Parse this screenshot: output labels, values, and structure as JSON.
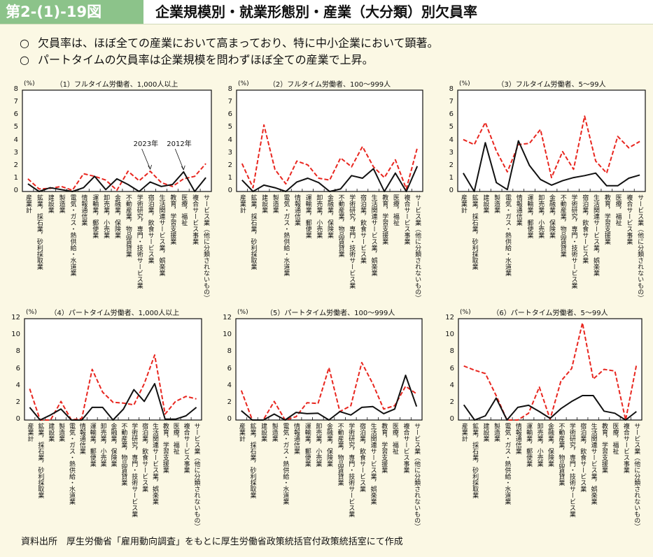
{
  "header": {
    "figure_number": "第2-(1)-19図",
    "title": "企業規模別・就業形態別・産業（大分類）別欠員率"
  },
  "points": [
    {
      "marker": "○",
      "text": "欠員率は、ほぼ全ての産業において高まっており、特に中小企業において顕著。"
    },
    {
      "marker": "○",
      "text": "パートタイムの欠員率は企業規模を問わずほぼ全ての産業で上昇。"
    }
  ],
  "source": "資料出所　厚生労働省「雇用動向調査」をもとに厚生労働省政策統括官付政策統括室にて作成",
  "colors": {
    "series_2023": "#e8261f",
    "series_2012": "#111111",
    "header_green": "#8cc38a",
    "background": "#fbf8e4"
  },
  "chart_data": [
    {
      "type": "line",
      "title": "（1）フルタイム労働者、1,000人以上",
      "ylabel": "(%)",
      "ylim": [
        0,
        8
      ],
      "yticks": [
        "0",
        "1",
        "2",
        "3",
        "4",
        "5",
        "6",
        "7",
        "8"
      ],
      "categories": [
        "産業計",
        "鉱業，採石業，砂利採取業",
        "建設業",
        "製造業",
        "電気・ガス・熱供給・水道業",
        "情報通信業",
        "運輸業，郵便業",
        "卸売業，小売業",
        "金融業，保険業",
        "不動産業，物品賃貸業",
        "学術研究，専門・技術サービス業",
        "宿泊業，飲食サービス業",
        "生活関連サービス業，娯楽業",
        "教育，学習支援業",
        "医療，福祉",
        "複合サービス事業",
        "サービス業（他に分類されないもの）"
      ],
      "series": [
        {
          "name": "2023年",
          "style": "dashed-red",
          "values": [
            1.0,
            0.2,
            0.25,
            0.4,
            0.1,
            1.4,
            1.2,
            0.9,
            0.1,
            1.6,
            0.85,
            1.6,
            0.7,
            0.4,
            1.0,
            1.2,
            2.2
          ]
        },
        {
          "name": "2012年",
          "style": "solid-black",
          "values": [
            0.6,
            0,
            0.3,
            0.15,
            0,
            0.3,
            1.2,
            0.15,
            1.0,
            0.55,
            0,
            0.75,
            0.4,
            0.55,
            1.55,
            0,
            1.1
          ]
        }
      ],
      "annotations": [
        {
          "text": "2023年",
          "series": 0,
          "index": 11
        },
        {
          "text": "2012年",
          "series": 1,
          "index": 14
        }
      ]
    },
    {
      "type": "line",
      "title": "（2）フルタイム労働者、100～999人",
      "ylabel": "(%)",
      "ylim": [
        0,
        8
      ],
      "yticks": [
        "0",
        "1",
        "2",
        "3",
        "4",
        "5",
        "6",
        "7",
        "8"
      ],
      "categories": [
        "産業計",
        "鉱業，採石業，砂利採取業",
        "建設業",
        "製造業",
        "電気・ガス・熱供給・水道業",
        "情報通信業",
        "運輸業，郵便業",
        "卸売業，小売業",
        "金融業，保険業",
        "不動産業，物品賃貸業",
        "学術研究，専門・技術サービス業",
        "宿泊業，飲食サービス業",
        "生活関連サービス業，娯楽業",
        "教育，学習支援業",
        "医療，福祉",
        "複合サービス事業",
        "サービス業（他に分類されないもの）"
      ],
      "series": [
        {
          "style": "dashed-red",
          "values": [
            2.2,
            0.3,
            5.25,
            1.75,
            0.6,
            2.4,
            2.1,
            1.05,
            0.9,
            2.65,
            1.95,
            3.55,
            1.95,
            1.1,
            2.5,
            0.2,
            3.45
          ]
        },
        {
          "style": "solid-black",
          "values": [
            0.9,
            0,
            0.5,
            0.3,
            0,
            0.75,
            1.05,
            0.7,
            0,
            0.2,
            1.25,
            1.05,
            1.8,
            0,
            1.45,
            0,
            2.0
          ]
        }
      ]
    },
    {
      "type": "line",
      "title": "（3）フルタイム労働者、5～99人",
      "ylabel": "(%)",
      "ylim": [
        0,
        8
      ],
      "yticks": [
        "0",
        "1",
        "2",
        "3",
        "4",
        "5",
        "6",
        "7",
        "8"
      ],
      "categories": [
        "産業計",
        "鉱業，採石業，砂利採取業",
        "建設業",
        "製造業",
        "電気・ガス・熱供給・水道業",
        "情報通信業",
        "運輸業，郵便業",
        "卸売業，小売業",
        "金融業，保険業",
        "不動産業，物品賃貸業",
        "学術研究，専門・技術サービス業",
        "宿泊業，飲食サービス業",
        "生活関連サービス業，娯楽業",
        "教育，学習支援業",
        "医療，福祉",
        "複合サービス事業",
        "サービス業（他に分類されないもの）"
      ],
      "series": [
        {
          "style": "dashed-red",
          "values": [
            4.1,
            3.7,
            5.45,
            3.2,
            1.55,
            3.7,
            3.8,
            4.9,
            1.1,
            3.15,
            1.75,
            5.95,
            2.4,
            1.45,
            4.35,
            3.45,
            3.95
          ]
        },
        {
          "style": "solid-black",
          "values": [
            1.45,
            0,
            3.85,
            0.7,
            0.15,
            4.0,
            2.05,
            0.95,
            0.5,
            0.85,
            1.1,
            1.25,
            1.45,
            0.45,
            0.45,
            1.05,
            1.3
          ]
        }
      ]
    },
    {
      "type": "line",
      "title": "（4）パートタイム労働者、1,000人以上",
      "ylabel": "(%)",
      "ylim": [
        0,
        12
      ],
      "yticks": [
        "0",
        "2",
        "4",
        "6",
        "8",
        "10",
        "12"
      ],
      "categories": [
        "産業計",
        "鉱業，採石業，砂利採取業",
        "建設業",
        "製造業",
        "電気・ガス・熱供給・水道業",
        "情報通信業",
        "運輸業，郵便業",
        "卸売業，小売業",
        "金融業，保険業",
        "不動産業，物品賃貸業",
        "学術研究，専門・技術サービス業",
        "宿泊業，飲食サービス業",
        "生活関連サービス業，娯楽業",
        "教育，学習支援業",
        "医療，福祉",
        "複合サービス事業",
        "サービス業（他に分類されないもの）"
      ],
      "series": [
        {
          "style": "dashed-red",
          "values": [
            3.7,
            0,
            0,
            2.2,
            0,
            0.2,
            6.0,
            3.3,
            2.1,
            2.0,
            1.8,
            4.3,
            7.7,
            0.7,
            2.2,
            2.8,
            2.5
          ]
        },
        {
          "style": "solid-black",
          "values": [
            1.5,
            0,
            0.6,
            1.3,
            0,
            0,
            1.5,
            1.5,
            0,
            1.3,
            3.6,
            2.2,
            4.3,
            0.1,
            0.1,
            0.5,
            1.5
          ]
        }
      ]
    },
    {
      "type": "line",
      "title": "（5）パートタイム労働者、100～999人",
      "ylabel": "(%)",
      "ylim": [
        0,
        12
      ],
      "yticks": [
        "0",
        "2",
        "4",
        "6",
        "8",
        "10",
        "12"
      ],
      "categories": [
        "産業計",
        "鉱業，採石業，砂利採取業",
        "建設業",
        "製造業",
        "電気・ガス・熱供給・水道業",
        "情報通信業",
        "運輸業，郵便業",
        "卸売業，小売業",
        "金融業，保険業",
        "不動産業，物品賃貸業",
        "学術研究，専門・技術サービス業",
        "宿泊業，飲食サービス業",
        "生活関連サービス業，娯楽業",
        "教育，学習支援業",
        "医療，福祉",
        "複合サービス事業",
        "サービス業（他に分類されないもの）"
      ],
      "series": [
        {
          "style": "dashed-red",
          "values": [
            3.5,
            0,
            0,
            2.2,
            0,
            0.4,
            2.05,
            1.95,
            6.2,
            1.0,
            1.7,
            6.8,
            4.3,
            1.3,
            1.7,
            4.0,
            3.1
          ]
        },
        {
          "style": "solid-black",
          "values": [
            1.1,
            0,
            0,
            0.7,
            0,
            0.9,
            0.75,
            0.8,
            0,
            1.0,
            0.6,
            1.5,
            1.6,
            0.75,
            1.3,
            5.3,
            1.6
          ]
        }
      ]
    },
    {
      "type": "line",
      "title": "（6）パートタイム労働者、5～99人",
      "ylabel": "(%)",
      "ylim": [
        0,
        12
      ],
      "yticks": [
        "0",
        "2",
        "4",
        "6",
        "8",
        "10",
        "12"
      ],
      "categories": [
        "産業計",
        "鉱業，採石業，砂利採取業",
        "建設業",
        "製造業",
        "電気・ガス・熱供給・水道業",
        "情報通信業",
        "運輸業，郵便業",
        "卸売業，小売業",
        "金融業，保険業",
        "不動産業，物品賃貸業",
        "学術研究，専門・技術サービス業",
        "宿泊業，飲食サービス業",
        "生活関連サービス業，娯楽業",
        "教育，学習支援業",
        "医療，福祉",
        "複合サービス事業",
        "サービス業（他に分類されないもの）"
      ],
      "series": [
        {
          "style": "dashed-red",
          "values": [
            6.4,
            5.9,
            5.5,
            2.9,
            0,
            0,
            0.8,
            3.9,
            0.1,
            4.6,
            6.1,
            11.5,
            4.85,
            6.0,
            5.8,
            0,
            6.5
          ]
        },
        {
          "style": "solid-black",
          "values": [
            1.8,
            0,
            0.5,
            2.6,
            0,
            1.5,
            1.75,
            1.0,
            0.2,
            1.35,
            2.2,
            2.9,
            2.9,
            1.05,
            0.8,
            0,
            1.0
          ]
        }
      ]
    }
  ]
}
